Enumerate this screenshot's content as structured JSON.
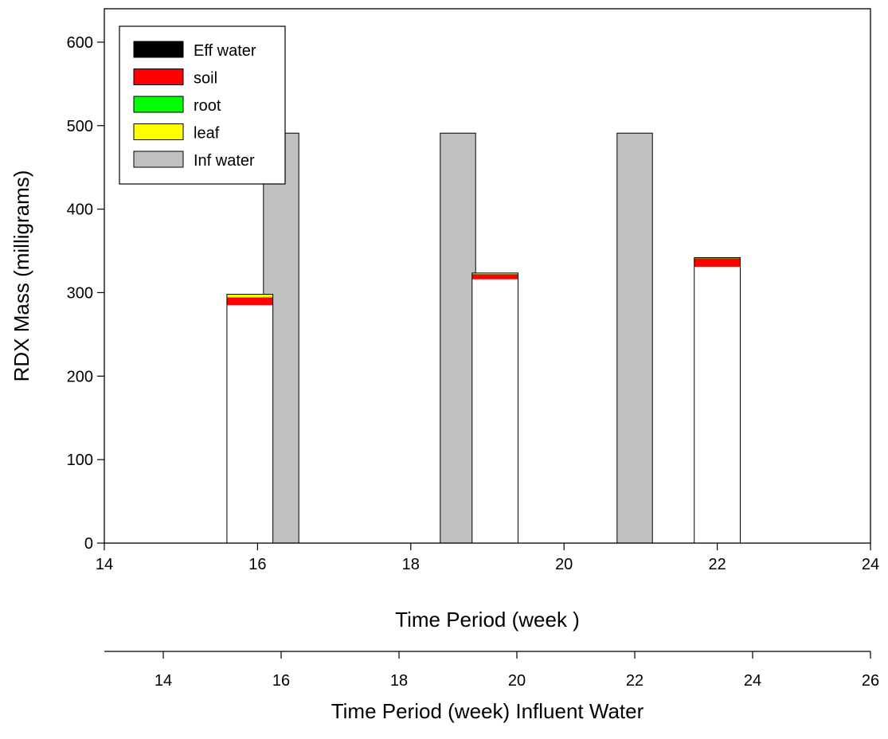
{
  "chart_data": {
    "type": "bar",
    "stacked": true,
    "ylabel": "RDX Mass (milligrams)",
    "ylim": [
      0,
      640
    ],
    "yticks": [
      0,
      100,
      200,
      300,
      400,
      500,
      600
    ],
    "primary_x": {
      "label": "Time Period (week )",
      "range": [
        14,
        24
      ],
      "ticks": [
        14,
        16,
        18,
        20,
        22,
        24
      ]
    },
    "secondary_x": {
      "label": "Time Period (week) Influent  Water",
      "range": [
        13,
        26
      ],
      "ticks": [
        14,
        16,
        18,
        20,
        22,
        24,
        26
      ]
    },
    "legend": {
      "placement": "top-left",
      "entries": [
        {
          "name": "Eff water",
          "color": "#000000"
        },
        {
          "name": "soil",
          "color": "#ff0000"
        },
        {
          "name": "root",
          "color": "#00ff00"
        },
        {
          "name": "leaf",
          "color": "#ffff00"
        },
        {
          "name": "Inf water",
          "color": "#c0c0c0"
        }
      ]
    },
    "effluent_bars": {
      "axis": "primary_x",
      "x": [
        15.9,
        19.1,
        22.0
      ],
      "width_weeks": 0.6,
      "series": [
        {
          "name": "Eff water",
          "color": "#ffffff",
          "values": [
            285,
            316,
            331
          ]
        },
        {
          "name": "soil",
          "color": "#ff0000",
          "values": [
            9,
            6,
            10
          ]
        },
        {
          "name": "root",
          "color": "#00ff00",
          "values": [
            1,
            0.5,
            0.5
          ]
        },
        {
          "name": "leaf",
          "color": "#ffff00",
          "values": [
            3,
            1,
            0.5
          ]
        }
      ]
    },
    "influent_bars": {
      "axis": "secondary_x",
      "name": "Inf water",
      "color": "#c0c0c0",
      "x": [
        16.0,
        19.0,
        22.0
      ],
      "width_weeks": 0.6,
      "values": [
        491,
        491,
        491
      ]
    }
  }
}
